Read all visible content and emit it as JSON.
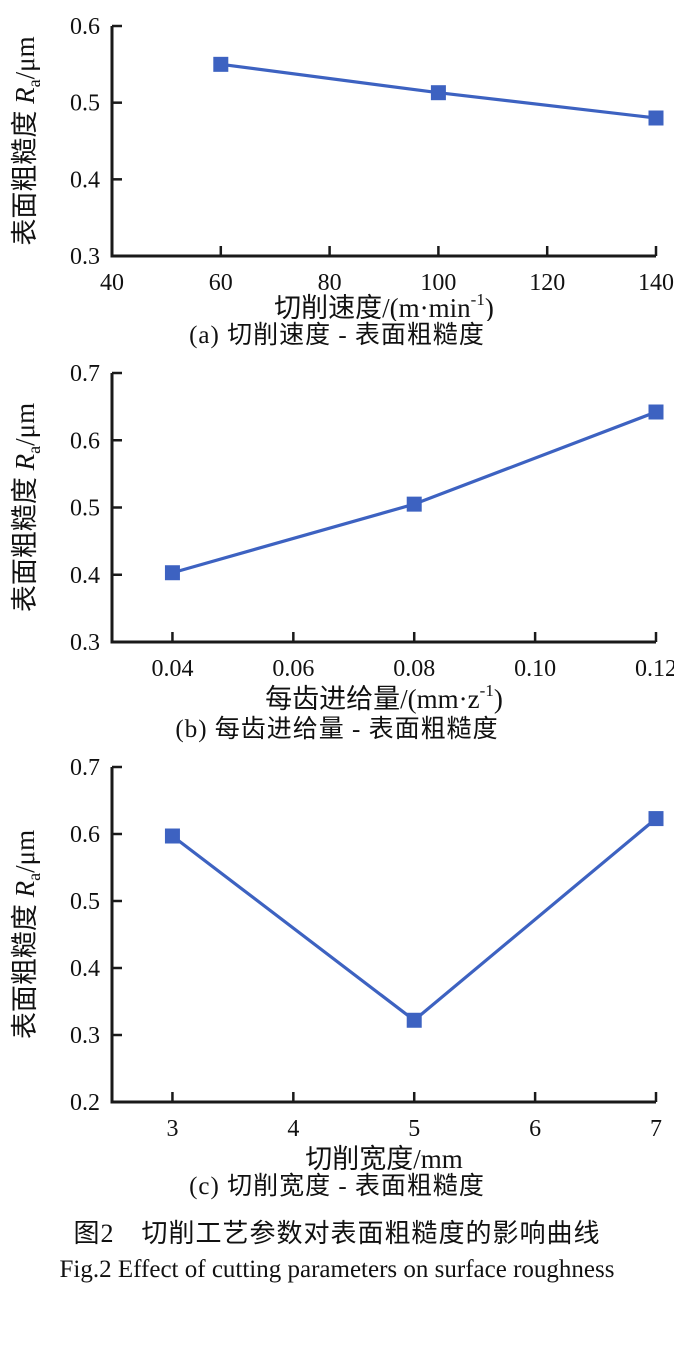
{
  "figure": {
    "caption_zh": "图2　切削工艺参数对表面粗糙度的影响曲线",
    "caption_en": "Fig.2  Effect of cutting parameters on surface roughness"
  },
  "colors": {
    "line": "#3d62c1",
    "marker": "#3d62c1",
    "axis": "#1a1a1a",
    "text": "#111111"
  },
  "chart_data": [
    {
      "type": "line",
      "title": "(a) 切削速度 - 表面粗糙度",
      "x": [
        60,
        100,
        140
      ],
      "y": [
        0.55,
        0.513,
        0.48
      ],
      "xlim": [
        40,
        140
      ],
      "ylim": [
        0.3,
        0.6
      ],
      "xticks": [
        40,
        60,
        80,
        100,
        120,
        140
      ],
      "xtick_labels": [
        "40",
        "60",
        "80",
        "100",
        "120",
        "140"
      ],
      "yticks": [
        0.3,
        0.4,
        0.5,
        0.6
      ],
      "ytick_labels": [
        "0.3",
        "0.4",
        "0.5",
        "0.6"
      ],
      "xlabel": "切削速度/(m·min⁻¹)",
      "xlabel_parts": {
        "main": "切削速度/(m·min",
        "sup": "-1",
        "close": ")"
      },
      "ylabel": "表面粗糙度 Ra/μm",
      "ylabel_parts": {
        "main": "表面粗糙度 ",
        "sym": "R",
        "sub": "a",
        "unit": "/μm"
      },
      "marker": "square",
      "grid": false,
      "legend": "none",
      "caption": "(a) 切削速度 - 表面粗糙度"
    },
    {
      "type": "line",
      "title": "(b) 每齿进给量 - 表面粗糙度",
      "x": [
        0.04,
        0.08,
        0.12
      ],
      "y": [
        0.403,
        0.505,
        0.642
      ],
      "xlim": [
        0.03,
        0.12
      ],
      "ylim": [
        0.3,
        0.7
      ],
      "xticks": [
        0.04,
        0.06,
        0.08,
        0.1,
        0.12
      ],
      "xtick_labels": [
        "0.04",
        "0.06",
        "0.08",
        "0.10",
        "0.12"
      ],
      "yticks": [
        0.3,
        0.4,
        0.5,
        0.6,
        0.7
      ],
      "ytick_labels": [
        "0.3",
        "0.4",
        "0.5",
        "0.6",
        "0.7"
      ],
      "xlabel": "每齿进给量/(mm·z⁻¹)",
      "xlabel_parts": {
        "main": "每齿进给量/(mm·z",
        "sup": "-1",
        "close": ")"
      },
      "ylabel": "表面粗糙度 Ra/μm",
      "ylabel_parts": {
        "main": "表面粗糙度 ",
        "sym": "R",
        "sub": "a",
        "unit": "/μm"
      },
      "marker": "square",
      "grid": false,
      "legend": "none",
      "caption": "(b) 每齿进给量 - 表面粗糙度"
    },
    {
      "type": "line",
      "title": "(c) 切削宽度 - 表面粗糙度",
      "x": [
        3,
        5,
        7
      ],
      "y": [
        0.597,
        0.322,
        0.623
      ],
      "xlim": [
        2.5,
        7
      ],
      "ylim": [
        0.2,
        0.7
      ],
      "xticks": [
        3,
        4,
        5,
        6,
        7
      ],
      "xtick_labels": [
        "3",
        "4",
        "5",
        "6",
        "7"
      ],
      "yticks": [
        0.2,
        0.3,
        0.4,
        0.5,
        0.6,
        0.7
      ],
      "ytick_labels": [
        "0.2",
        "0.3",
        "0.4",
        "0.5",
        "0.6",
        "0.7"
      ],
      "xlabel": "切削宽度/mm",
      "xlabel_parts": {
        "main": "切削宽度/mm"
      },
      "ylabel": "表面粗糙度 Ra/μm",
      "ylabel_parts": {
        "main": "表面粗糙度 ",
        "sym": "R",
        "sub": "a",
        "unit": "/μm"
      },
      "marker": "square",
      "grid": false,
      "legend": "none",
      "caption": "(c) 切削宽度 - 表面粗糙度"
    }
  ]
}
